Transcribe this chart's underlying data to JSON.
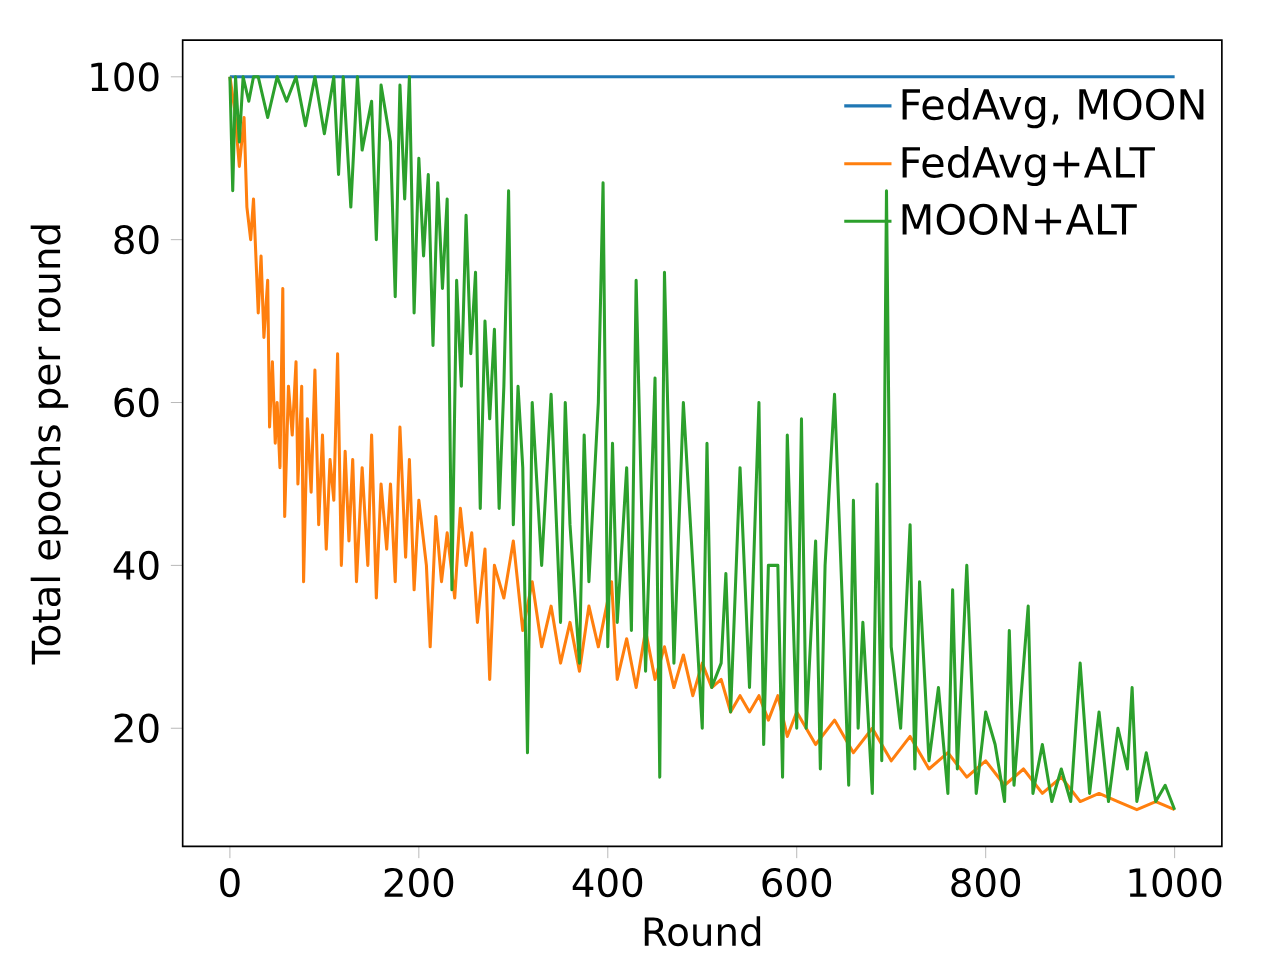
{
  "chart_data": {
    "type": "line",
    "xlabel": "Round",
    "ylabel": "Total epochs per round",
    "xlim": [
      -50,
      1050
    ],
    "ylim": [
      5.5,
      104.5
    ],
    "xticks": [
      0,
      200,
      400,
      600,
      800,
      1000
    ],
    "yticks": [
      20,
      40,
      60,
      80,
      100
    ],
    "legend": "top right",
    "line_style": "solid",
    "marker": "none",
    "series": [
      {
        "name": "FedAvg, MOON",
        "color": "#1f77b4",
        "x": [
          0,
          1000
        ],
        "values": [
          100,
          100
        ]
      },
      {
        "name": "FedAvg+ALT",
        "color": "#ff7f0e",
        "x": [
          0,
          5,
          10,
          15,
          18,
          22,
          25,
          30,
          33,
          36,
          40,
          42,
          45,
          48,
          50,
          53,
          56,
          58,
          62,
          66,
          70,
          72,
          76,
          78,
          82,
          86,
          90,
          94,
          98,
          102,
          106,
          110,
          114,
          118,
          122,
          126,
          130,
          134,
          140,
          146,
          150,
          155,
          160,
          166,
          170,
          175,
          180,
          186,
          190,
          195,
          200,
          208,
          212,
          218,
          224,
          230,
          238,
          244,
          250,
          256,
          262,
          270,
          275,
          280,
          290,
          300,
          310,
          320,
          330,
          340,
          350,
          360,
          370,
          380,
          390,
          404,
          410,
          420,
          430,
          440,
          450,
          460,
          470,
          480,
          490,
          500,
          510,
          520,
          530,
          540,
          550,
          560,
          570,
          580,
          590,
          600,
          620,
          640,
          660,
          680,
          700,
          720,
          740,
          760,
          780,
          800,
          820,
          840,
          860,
          880,
          900,
          920,
          940,
          960,
          980,
          1000
        ],
        "values": [
          100,
          96,
          89,
          95,
          84,
          80,
          85,
          71,
          78,
          68,
          75,
          57,
          65,
          55,
          60,
          52,
          74,
          46,
          62,
          56,
          65,
          50,
          62,
          38,
          58,
          49,
          64,
          45,
          56,
          42,
          53,
          48,
          66,
          40,
          54,
          43,
          53,
          38,
          52,
          40,
          56,
          36,
          50,
          42,
          50,
          38,
          57,
          41,
          53,
          37,
          48,
          40,
          30,
          46,
          38,
          44,
          36,
          47,
          40,
          44,
          33,
          42,
          26,
          40,
          36,
          43,
          32,
          38,
          30,
          35,
          28,
          33,
          27,
          35,
          30,
          38,
          26,
          31,
          25,
          32,
          26,
          30,
          25,
          29,
          24,
          28,
          25,
          26,
          22,
          24,
          22,
          24,
          21,
          24,
          19,
          22,
          18,
          21,
          17,
          20,
          16,
          19,
          15,
          17,
          14,
          16,
          13,
          15,
          12,
          14,
          11,
          12,
          11,
          10,
          11,
          10
        ]
      },
      {
        "name": "MOON+ALT",
        "color": "#2ca02c",
        "x": [
          0,
          3,
          6,
          10,
          14,
          20,
          25,
          30,
          40,
          50,
          60,
          70,
          80,
          90,
          100,
          110,
          115,
          120,
          128,
          135,
          140,
          150,
          155,
          160,
          170,
          175,
          180,
          185,
          190,
          195,
          200,
          205,
          210,
          215,
          220,
          225,
          230,
          235,
          240,
          245,
          250,
          255,
          260,
          265,
          270,
          275,
          280,
          285,
          290,
          295,
          300,
          305,
          310,
          315,
          320,
          330,
          340,
          350,
          355,
          360,
          370,
          375,
          380,
          390,
          395,
          400,
          405,
          410,
          420,
          425,
          430,
          440,
          450,
          455,
          460,
          470,
          480,
          490,
          500,
          505,
          510,
          520,
          525,
          530,
          540,
          550,
          560,
          565,
          570,
          580,
          585,
          590,
          600,
          605,
          610,
          620,
          625,
          630,
          640,
          650,
          655,
          660,
          665,
          670,
          680,
          685,
          690,
          695,
          700,
          710,
          720,
          725,
          730,
          740,
          750,
          760,
          765,
          770,
          780,
          790,
          800,
          810,
          820,
          825,
          830,
          845,
          850,
          860,
          870,
          880,
          890,
          900,
          910,
          920,
          930,
          940,
          950,
          955,
          960,
          970,
          980,
          990,
          1000
        ],
        "values": [
          100,
          86,
          100,
          92,
          100,
          97,
          100,
          100,
          95,
          100,
          97,
          100,
          94,
          100,
          93,
          100,
          88,
          100,
          84,
          100,
          91,
          97,
          80,
          99,
          92,
          73,
          99,
          85,
          100,
          71,
          90,
          78,
          88,
          67,
          87,
          74,
          85,
          37,
          75,
          62,
          83,
          66,
          76,
          47,
          70,
          58,
          69,
          47,
          62,
          86,
          45,
          62,
          52,
          17,
          60,
          40,
          61,
          33,
          60,
          45,
          28,
          56,
          38,
          60,
          87,
          30,
          55,
          33,
          52,
          32,
          75,
          27,
          63,
          14,
          76,
          28,
          60,
          40,
          20,
          55,
          25,
          28,
          39,
          22,
          52,
          25,
          60,
          18,
          40,
          40,
          14,
          56,
          20,
          58,
          20,
          43,
          15,
          40,
          61,
          30,
          13,
          48,
          20,
          33,
          12,
          50,
          16,
          86,
          30,
          20,
          45,
          15,
          38,
          16,
          25,
          12,
          37,
          15,
          40,
          12,
          22,
          18,
          11,
          32,
          13,
          35,
          12,
          18,
          11,
          15,
          11,
          28,
          12,
          22,
          11,
          20,
          15,
          25,
          11,
          17,
          11,
          13,
          10
        ]
      }
    ]
  }
}
